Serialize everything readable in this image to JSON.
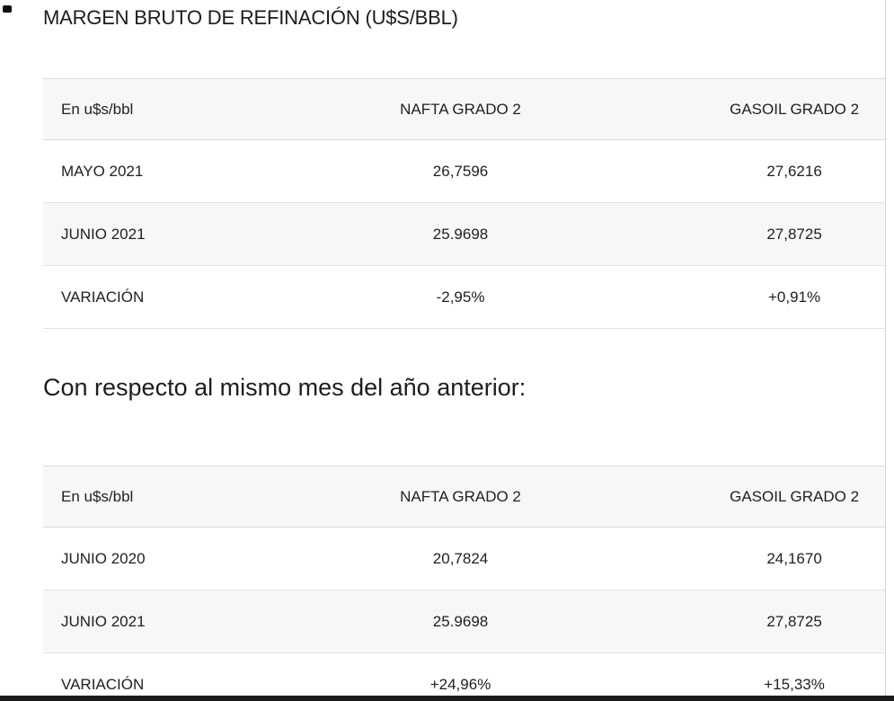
{
  "page": {
    "title": "MARGEN BRUTO DE REFINACIÓN (U$S/BBL)",
    "subtitle": "Con respecto al mismo mes del año anterior:"
  },
  "colors": {
    "row_stripe": "#f7f7f7",
    "row_border": "#dcdcdc",
    "text": "#212121",
    "bottom_bar": "#1c1c1c"
  },
  "tables": [
    {
      "headers": [
        "En u$s/bbl",
        "NAFTA GRADO 2",
        "GASOIL GRADO 2"
      ],
      "rows": [
        [
          "MAYO 2021",
          "26,7596",
          "27,6216"
        ],
        [
          "JUNIO 2021",
          "25.9698",
          "27,8725"
        ],
        [
          "VARIACIÓN",
          "-2,95%",
          "+0,91%"
        ]
      ]
    },
    {
      "headers": [
        "En u$s/bbl",
        "NAFTA GRADO 2",
        "GASOIL GRADO 2"
      ],
      "rows": [
        [
          "JUNIO 2020",
          "20,7824",
          "24,1670"
        ],
        [
          "JUNIO 2021",
          "25.9698",
          "27,8725"
        ],
        [
          "VARIACIÓN",
          "+24,96%",
          "+15,33%"
        ]
      ]
    }
  ]
}
